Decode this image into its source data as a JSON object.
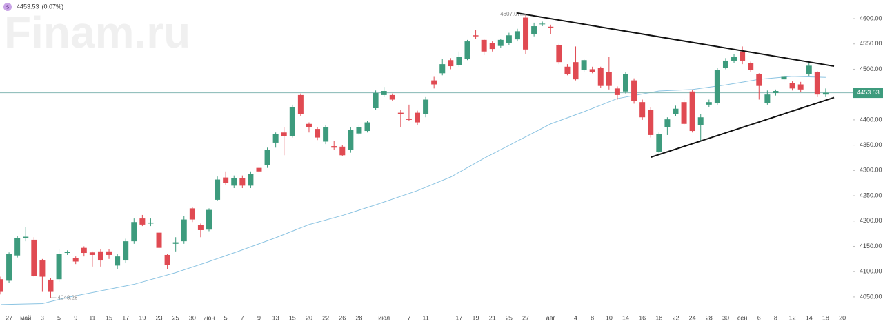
{
  "header": {
    "icon": "S",
    "change": "(0.07%)",
    "watermark": "Finam.ru"
  },
  "chart_data": {
    "type": "candlestick",
    "categories": [
      null,
      "27",
      null,
      "май",
      null,
      "3",
      null,
      "5",
      null,
      "9",
      null,
      "11",
      null,
      "15",
      null,
      "17",
      null,
      "19",
      null,
      "23",
      null,
      "25",
      null,
      "30",
      null,
      "июн",
      null,
      "5",
      null,
      "7",
      null,
      "9",
      null,
      "13",
      null,
      "15",
      null,
      "20",
      null,
      "22",
      null,
      "26",
      null,
      "28",
      null,
      null,
      "июл",
      null,
      null,
      "7",
      null,
      "11",
      null,
      null,
      null,
      "17",
      null,
      "19",
      null,
      "21",
      null,
      "25",
      null,
      "27",
      null,
      null,
      "авг",
      null,
      null,
      "4",
      null,
      "8",
      null,
      "10",
      null,
      "14",
      null,
      "16",
      null,
      "18",
      null,
      "22",
      null,
      "24",
      null,
      "28",
      null,
      "30",
      null,
      "сен",
      null,
      "6",
      null,
      "8",
      null,
      "12",
      null,
      "14",
      null,
      "18",
      null,
      "20"
    ],
    "open": [
      4085,
      4082,
      4132,
      4167,
      4163,
      4122,
      4084,
      4085,
      4137,
      4127,
      4147,
      4138,
      4140,
      4140,
      4112,
      4122,
      4160,
      4205,
      4195,
      4177,
      4133,
      4155,
      4160,
      4225,
      4192,
      4183,
      4242,
      4286,
      4270,
      4285,
      4270,
      4305,
      4310,
      4355,
      4375,
      4368,
      4449,
      4392,
      4382,
      4357,
      4348,
      4347,
      4340,
      4373,
      4378,
      4423,
      4449,
      4449,
      4414,
      4402,
      4414,
      4412,
      4478,
      4492,
      4518,
      4508,
      4521,
      4567,
      4558,
      4552,
      4546,
      4552,
      4559,
      4602,
      4569,
      4589,
      4584,
      4547,
      4505,
      4514,
      4498,
      4500,
      4503,
      4494,
      4462,
      4456,
      4478,
      4435,
      4419,
      4337,
      4385,
      4411,
      4435,
      4456,
      4389,
      4430,
      4433,
      4503,
      4517,
      4535,
      4512,
      4490,
      4433,
      4453,
      4480,
      4473,
      4470,
      4490,
      4494,
      4450,
      null,
      null
    ],
    "high": [
      4090,
      4138,
      4170,
      4188,
      4168,
      4125,
      4088,
      4145,
      4142,
      4130,
      4150,
      4140,
      4145,
      4145,
      4135,
      4165,
      4205,
      4212,
      4205,
      4180,
      4135,
      4168,
      4210,
      4228,
      4195,
      4225,
      4288,
      4298,
      4290,
      4290,
      4298,
      4308,
      4345,
      4375,
      4385,
      4430,
      4452,
      4395,
      4385,
      4390,
      4358,
      4350,
      4385,
      4390,
      4398,
      4458,
      4465,
      4452,
      4420,
      4430,
      4418,
      4445,
      4485,
      4520,
      4522,
      4535,
      4558,
      4578,
      4560,
      4555,
      4560,
      4572,
      4580,
      4607.07,
      4592,
      4594,
      4588,
      4550,
      4510,
      4545,
      4520,
      4505,
      4505,
      4525,
      4466,
      4495,
      4482,
      4440,
      4425,
      4375,
      4405,
      4428,
      4440,
      4460,
      4412,
      4440,
      4502,
      4522,
      4530,
      4545,
      4515,
      4492,
      4458,
      4460,
      4490,
      4476,
      4475,
      4512,
      4496,
      4462,
      null,
      null
    ],
    "low": [
      4055,
      4078,
      4128,
      4160,
      4090,
      4060,
      4048.28,
      4080,
      4133,
      4115,
      4130,
      4110,
      4110,
      4125,
      4105,
      4118,
      4155,
      4190,
      4190,
      4145,
      4105,
      4140,
      4155,
      4198,
      4168,
      4180,
      4240,
      4272,
      4265,
      4265,
      4265,
      4295,
      4305,
      4345,
      4330,
      4365,
      4408,
      4375,
      4360,
      4352,
      4340,
      4328,
      4335,
      4370,
      4375,
      4420,
      4445,
      4438,
      4385,
      4398,
      4390,
      4405,
      4462,
      4488,
      4500,
      4505,
      4518,
      4560,
      4528,
      4535,
      4542,
      4548,
      4555,
      4530,
      4565,
      4585,
      4570,
      4510,
      4488,
      4478,
      4495,
      4492,
      4463,
      4460,
      4440,
      4452,
      4432,
      4400,
      4365,
      4333,
      4370,
      4408,
      4390,
      4375,
      4358,
      4425,
      4430,
      4500,
      4512,
      4510,
      4494,
      4440,
      4430,
      4448,
      4475,
      4458,
      4455,
      4487,
      4445,
      4445,
      null,
      null
    ],
    "close": [
      4060,
      4135,
      4167,
      4169,
      4092,
      4090,
      4060,
      4135,
      4139,
      4120,
      4137,
      4133,
      4122,
      4133,
      4130,
      4160,
      4198,
      4193,
      4197,
      4147,
      4113,
      4158,
      4203,
      4203,
      4182,
      4222,
      4282,
      4275,
      4285,
      4270,
      4293,
      4298,
      4340,
      4372,
      4368,
      4425,
      4411,
      4385,
      4365,
      4385,
      4345,
      4330,
      4380,
      4385,
      4395,
      4453,
      4457,
      4440,
      4412,
      4400,
      4395,
      4440,
      4470,
      4510,
      4506,
      4524,
      4555,
      4565,
      4535,
      4540,
      4558,
      4567,
      4575,
      4539,
      4585,
      4590,
      4582,
      4514,
      4491,
      4480,
      4518,
      4495,
      4467,
      4467,
      4449,
      4490,
      4437,
      4405,
      4370,
      4372,
      4401,
      4422,
      4392,
      4378,
      4405,
      4435,
      4498,
      4517,
      4524,
      4517,
      4498,
      4467,
      4450,
      4457,
      4485,
      4462,
      4460,
      4507,
      4450,
      4453.53,
      null,
      null
    ],
    "up_color": "#3d9b7d",
    "down_color": "#e04a52",
    "ma": {
      "color": "#8cc4e2",
      "x": [
        0,
        5,
        8,
        12,
        16,
        21,
        25,
        29,
        33,
        37,
        41,
        45,
        50,
        54,
        58,
        62,
        66,
        70,
        74,
        79,
        83,
        87,
        91,
        95,
        99
      ],
      "values": [
        4035,
        4037,
        4049,
        4062,
        4075,
        4098,
        4120,
        4143,
        4167,
        4193,
        4211,
        4232,
        4260,
        4287,
        4324,
        4358,
        4392,
        4416,
        4442,
        4457,
        4460,
        4469,
        4480,
        4486,
        4484
      ]
    },
    "trendlines": [
      {
        "x": [
          62,
          100
        ],
        "values": [
          4611,
          4506
        ]
      },
      {
        "x": [
          78,
          100
        ],
        "values": [
          4326,
          4444
        ]
      }
    ],
    "price_line_color": "#86b8b4",
    "ylim": [
      4024,
      4636.8
    ],
    "yticks": [
      {
        "value": 4600,
        "label": "4600.00"
      },
      {
        "value": 4550,
        "label": "4550.00"
      },
      {
        "value": 4500,
        "label": "4500.00"
      },
      {
        "value": 4450,
        "label": "4450.00"
      },
      {
        "value": 4400,
        "label": "4400.00"
      },
      {
        "value": 4350,
        "label": "4350.00"
      },
      {
        "value": 4300,
        "label": "4300.00"
      },
      {
        "value": 4250,
        "label": "4250.00"
      },
      {
        "value": 4200,
        "label": "4200.00"
      },
      {
        "value": 4150,
        "label": "4150.00"
      },
      {
        "value": 4100,
        "label": "4100.00"
      },
      {
        "value": 4050,
        "label": "4050.00"
      }
    ]
  }
}
